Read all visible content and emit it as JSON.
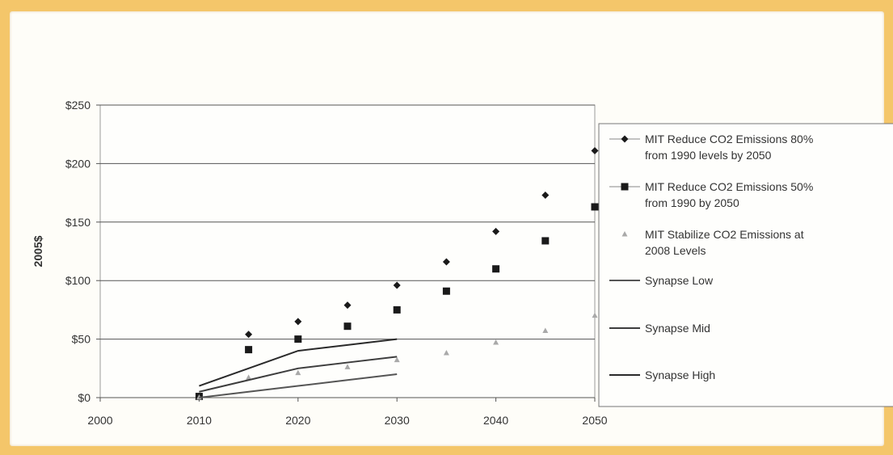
{
  "chart_data": {
    "type": "scatter",
    "ylabel": "2005$",
    "xlabel": "",
    "xlim": [
      2000,
      2050
    ],
    "ylim": [
      0,
      250
    ],
    "x_ticks": [
      "2000",
      "2010",
      "2020",
      "2030",
      "2040",
      "2050"
    ],
    "y_ticks": [
      "$0",
      "$50",
      "$100",
      "$150",
      "$200",
      "$250"
    ],
    "grid": "horizontal",
    "legend_position": "right",
    "series": [
      {
        "name": "MIT Reduce CO2 Emissions 80% from 1990 levels by 2050",
        "marker": "diamond",
        "color": "#1a1a1a",
        "x": [
          2010,
          2015,
          2020,
          2025,
          2030,
          2035,
          2040,
          2045,
          2050
        ],
        "values": [
          1,
          54,
          65,
          79,
          96,
          116,
          142,
          173,
          211
        ]
      },
      {
        "name": "MIT Reduce CO2 Emissions 50% from 1990 by 2050",
        "marker": "square",
        "color": "#1a1a1a",
        "x": [
          2010,
          2015,
          2020,
          2025,
          2030,
          2035,
          2040,
          2045,
          2050
        ],
        "values": [
          1,
          41,
          50,
          61,
          75,
          91,
          110,
          134,
          163
        ]
      },
      {
        "name": "MIT Stabilize CO2 Emissions at 2008 Levels",
        "marker": "triangle",
        "color": "#a9a9a9",
        "x": [
          2010,
          2015,
          2020,
          2025,
          2030,
          2035,
          2040,
          2045,
          2050
        ],
        "values": [
          0,
          17,
          21,
          26,
          32,
          38,
          47,
          57,
          70
        ]
      },
      {
        "name": "Synapse Low",
        "marker": "line",
        "color": "#555555",
        "x": [
          2010,
          2015,
          2020,
          2025,
          2030
        ],
        "values": [
          0,
          5,
          10,
          15,
          20
        ]
      },
      {
        "name": "Synapse Mid",
        "marker": "line",
        "color": "#3d3d3d",
        "x": [
          2010,
          2015,
          2020,
          2025,
          2030
        ],
        "values": [
          5,
          15,
          25,
          30,
          35
        ]
      },
      {
        "name": "Synapse High",
        "marker": "line",
        "color": "#2a2a2a",
        "x": [
          2010,
          2015,
          2020,
          2025,
          2030
        ],
        "values": [
          10,
          25,
          40,
          45,
          50
        ]
      }
    ]
  },
  "legend_lines": [
    [
      "MIT Reduce CO2 Emissions 80%",
      "from 1990 levels by 2050"
    ],
    [
      "MIT Reduce CO2 Emissions 50%",
      "from 1990 by 2050"
    ],
    [
      "MIT Stabilize CO2 Emissions at",
      "2008 Levels"
    ],
    [
      "Synapse Low"
    ],
    [
      "Synapse Mid"
    ],
    [
      "Synapse High"
    ]
  ]
}
